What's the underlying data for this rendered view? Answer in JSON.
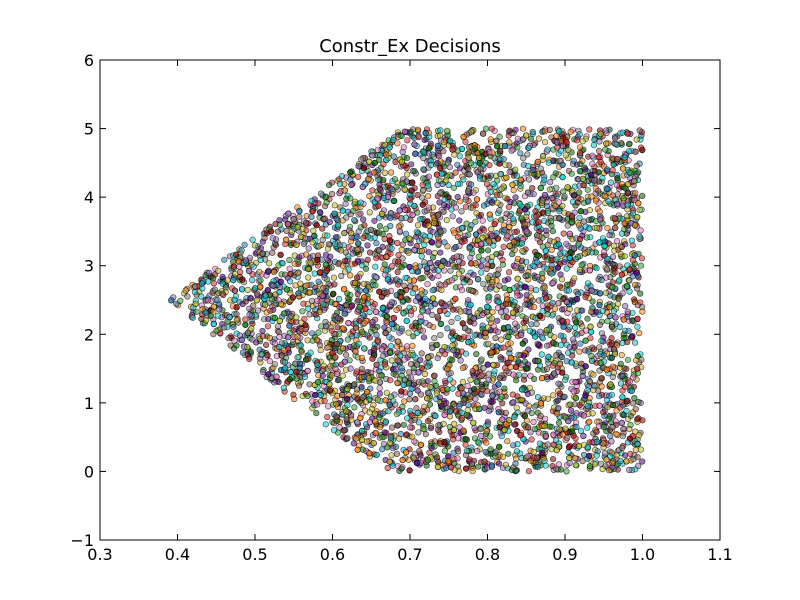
{
  "chart_data": {
    "type": "scatter",
    "title": "Constr_Ex Decisions",
    "xlabel": "",
    "ylabel": "",
    "xlim": [
      0.3,
      1.1
    ],
    "ylim": [
      -1,
      6
    ],
    "xticks": [
      0.3,
      0.4,
      0.5,
      0.6,
      0.7,
      0.8,
      0.9,
      1.0,
      1.1
    ],
    "xtick_labels": [
      "0.3",
      "0.4",
      "0.5",
      "0.6",
      "0.7",
      "0.8",
      "0.9",
      "1.0",
      "1.1"
    ],
    "yticks": [
      -1,
      0,
      1,
      2,
      3,
      4,
      5,
      6
    ],
    "ytick_labels": [
      "−1",
      "0",
      "1",
      "2",
      "3",
      "4",
      "5",
      "6"
    ],
    "grid": false,
    "legend": "none",
    "region_boundary": {
      "x_range": [
        0.39,
        1.0
      ],
      "y_range": [
        0.0,
        5.0
      ],
      "vertices": [
        {
          "x": 0.667,
          "y": 0.0
        },
        {
          "x": 1.0,
          "y": 0.0
        },
        {
          "x": 1.0,
          "y": 5.0
        },
        {
          "x": 0.69,
          "y": 5.0
        },
        {
          "x": 0.39,
          "y": 2.5
        }
      ]
    },
    "point_count_estimate": 5000,
    "point_colors": [
      "#1f77b4",
      "#2ca02c",
      "#d62728",
      "#9467bd",
      "#17becf",
      "#bcbd22",
      "#ff7f0e",
      "#8c564b",
      "#e377c2",
      "#7f7f7f",
      "#006400",
      "#00ced1",
      "#8b0000",
      "#4b0082",
      "#daa520"
    ]
  }
}
